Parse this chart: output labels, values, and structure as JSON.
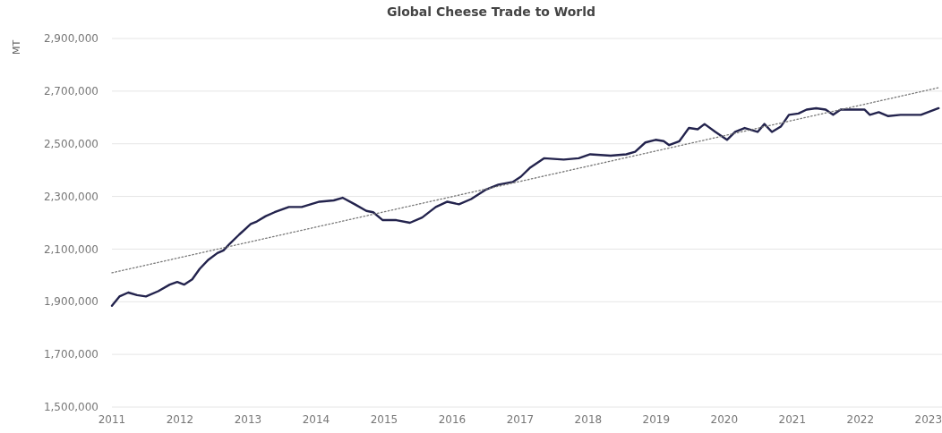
{
  "chart_data": {
    "type": "line",
    "title": "Global Cheese Trade to World",
    "ylabel": "MT",
    "xlim": [
      2011,
      2023.2
    ],
    "xticks": [
      2011,
      2012,
      2013,
      2014,
      2015,
      2016,
      2017,
      2018,
      2019,
      2020,
      2021,
      2022,
      2023
    ],
    "ylim": [
      1500000,
      2900000
    ],
    "yticks": [
      {
        "value": 1500000,
        "label": "1,500,000"
      },
      {
        "value": 1700000,
        "label": "1,700,000"
      },
      {
        "value": 1900000,
        "label": "1,900,000"
      },
      {
        "value": 2100000,
        "label": "2,100,000"
      },
      {
        "value": 2300000,
        "label": "2,300,000"
      },
      {
        "value": 2500000,
        "label": "2,500,000"
      },
      {
        "value": 2700000,
        "label": "2,700,000"
      },
      {
        "value": 2900000,
        "label": "2,900,000"
      }
    ],
    "grid": "y",
    "marker": "none",
    "series": [
      {
        "color": "#23234d",
        "line_style": "solid",
        "x": [
          2011.0,
          2011.11,
          2011.24,
          2011.37,
          2011.5,
          2011.68,
          2011.85,
          2011.96,
          2012.06,
          2012.18,
          2012.29,
          2012.42,
          2012.55,
          2012.64,
          2012.73,
          2012.87,
          2013.04,
          2013.13,
          2013.26,
          2013.39,
          2013.6,
          2013.79,
          2013.92,
          2014.05,
          2014.26,
          2014.39,
          2014.57,
          2014.74,
          2014.84,
          2014.98,
          2015.18,
          2015.38,
          2015.56,
          2015.76,
          2015.93,
          2016.1,
          2016.28,
          2016.49,
          2016.68,
          2016.89,
          2017.01,
          2017.15,
          2017.35,
          2017.64,
          2017.86,
          2018.03,
          2018.33,
          2018.56,
          2018.69,
          2018.84,
          2018.99,
          2019.11,
          2019.19,
          2019.34,
          2019.48,
          2019.61,
          2019.71,
          2019.87,
          2020.04,
          2020.16,
          2020.3,
          2020.49,
          2020.59,
          2020.7,
          2020.83,
          2020.95,
          2021.09,
          2021.21,
          2021.35,
          2021.49,
          2021.6,
          2021.71,
          2021.88,
          2022.06,
          2022.14,
          2022.27,
          2022.41,
          2022.59,
          2022.89,
          2023.15
        ],
        "values": [
          1885000,
          1920000,
          1935000,
          1925000,
          1920000,
          1940000,
          1965000,
          1975000,
          1965000,
          1985000,
          2025000,
          2060000,
          2085000,
          2095000,
          2120000,
          2155000,
          2195000,
          2205000,
          2225000,
          2240000,
          2260000,
          2260000,
          2270000,
          2280000,
          2285000,
          2295000,
          2270000,
          2245000,
          2240000,
          2210000,
          2210000,
          2200000,
          2220000,
          2260000,
          2280000,
          2270000,
          2290000,
          2325000,
          2345000,
          2355000,
          2375000,
          2410000,
          2445000,
          2440000,
          2445000,
          2460000,
          2455000,
          2460000,
          2470000,
          2505000,
          2515000,
          2510000,
          2495000,
          2510000,
          2560000,
          2555000,
          2575000,
          2545000,
          2515000,
          2545000,
          2560000,
          2545000,
          2575000,
          2545000,
          2565000,
          2610000,
          2615000,
          2630000,
          2635000,
          2630000,
          2610000,
          2630000,
          2630000,
          2630000,
          2610000,
          2620000,
          2605000,
          2610000,
          2610000,
          2635000
        ]
      },
      {
        "color": "#777777",
        "line_style": "dotted",
        "x": [
          2011.0,
          2023.15
        ],
        "values": [
          2010000,
          2713000
        ]
      }
    ]
  }
}
